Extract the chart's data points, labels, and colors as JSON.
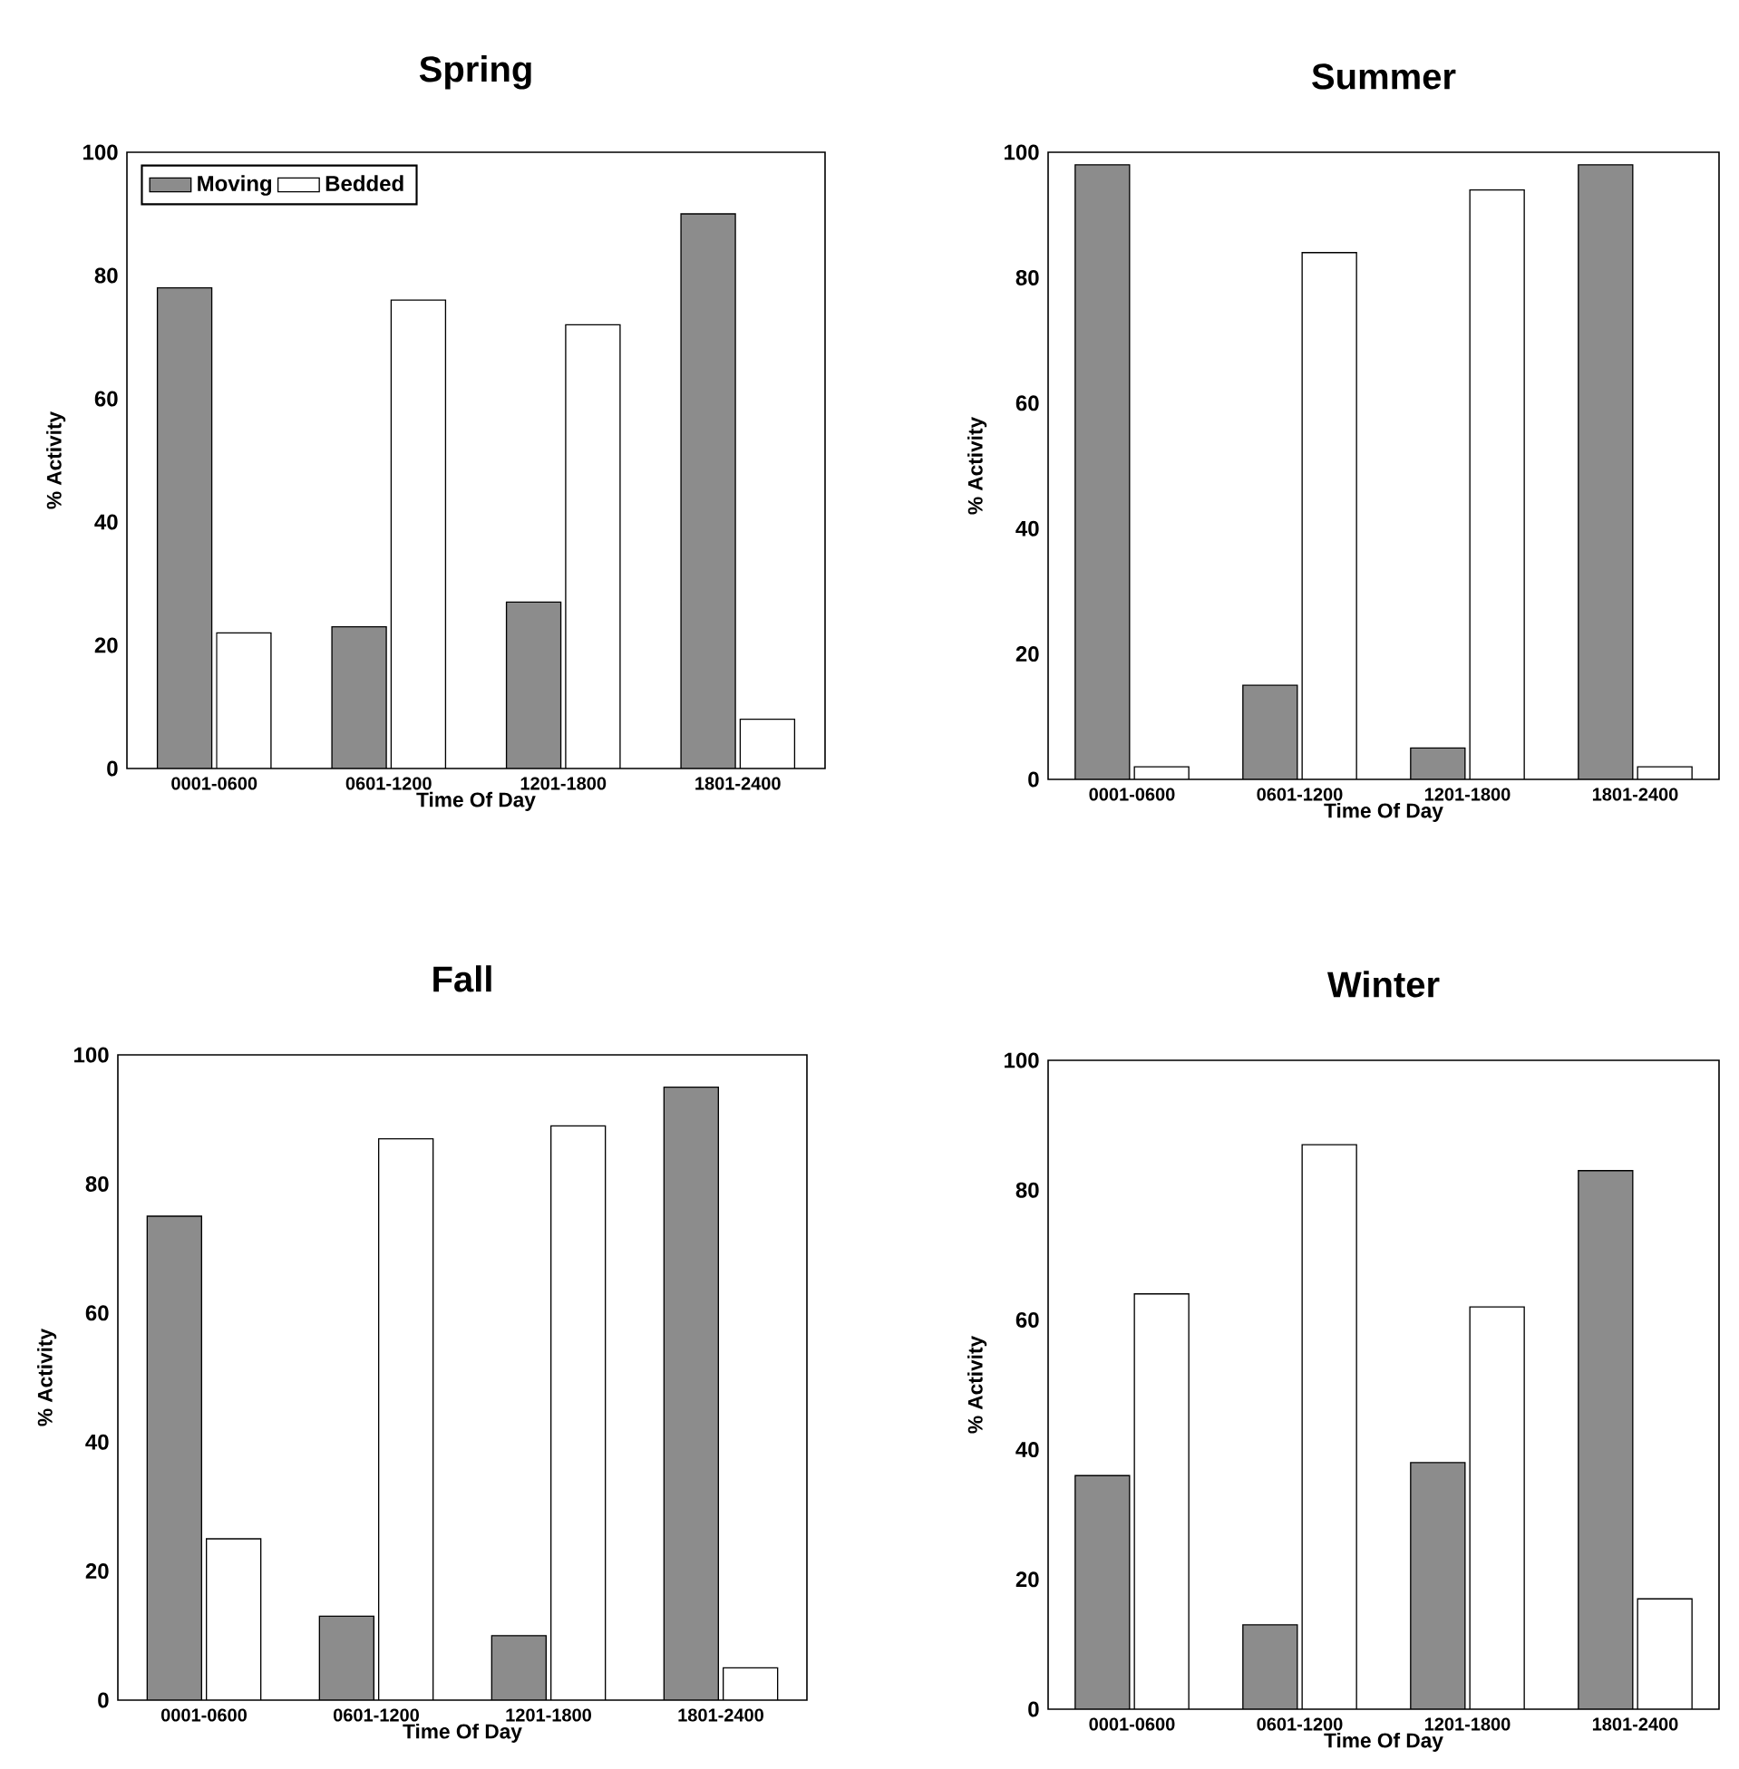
{
  "chart_data": [
    {
      "type": "bar",
      "title": "Spring",
      "xlabel": "Time Of Day",
      "ylabel": "% Activity",
      "categories": [
        "0001-0600",
        "0601-1200",
        "1201-1800",
        "1801-2400"
      ],
      "ylim": [
        0,
        100
      ],
      "yticks": [
        0,
        20,
        40,
        60,
        80,
        100
      ],
      "legend": "top left",
      "series": [
        {
          "name": "Moving",
          "color": "#8c8c8c",
          "values": [
            78,
            23,
            27,
            90
          ]
        },
        {
          "name": "Bedded",
          "color": "#ffffff",
          "values": [
            22,
            76,
            72,
            8
          ]
        }
      ]
    },
    {
      "type": "bar",
      "title": "Summer",
      "xlabel": "Time Of Day",
      "ylabel": "% Activity",
      "categories": [
        "0001-0600",
        "0601-1200",
        "1201-1800",
        "1801-2400"
      ],
      "ylim": [
        0,
        100
      ],
      "yticks": [
        0,
        20,
        40,
        60,
        80,
        100
      ],
      "series": [
        {
          "color": "#8c8c8c",
          "values": [
            98,
            15,
            5,
            98
          ]
        },
        {
          "color": "#ffffff",
          "values": [
            2,
            84,
            94,
            2
          ]
        }
      ]
    },
    {
      "type": "bar",
      "title": "Fall",
      "xlabel": "Time Of Day",
      "ylabel": "% Activity",
      "categories": [
        "0001-0600",
        "0601-1200",
        "1201-1800",
        "1801-2400"
      ],
      "ylim": [
        0,
        100
      ],
      "yticks": [
        0,
        20,
        40,
        60,
        80,
        100
      ],
      "series": [
        {
          "color": "#8c8c8c",
          "values": [
            75,
            13,
            10,
            95
          ]
        },
        {
          "color": "#ffffff",
          "values": [
            25,
            87,
            89,
            5
          ]
        }
      ]
    },
    {
      "type": "bar",
      "title": "Winter",
      "xlabel": "Time Of Day",
      "ylabel": "% Activity",
      "categories": [
        "0001-0600",
        "0601-1200",
        "1201-1800",
        "1801-2400"
      ],
      "ylim": [
        0,
        100
      ],
      "yticks": [
        0,
        20,
        40,
        60,
        80,
        100
      ],
      "series": [
        {
          "color": "#8c8c8c",
          "values": [
            36,
            13,
            38,
            83
          ]
        },
        {
          "color": "#ffffff",
          "values": [
            64,
            87,
            62,
            17
          ]
        }
      ]
    }
  ]
}
